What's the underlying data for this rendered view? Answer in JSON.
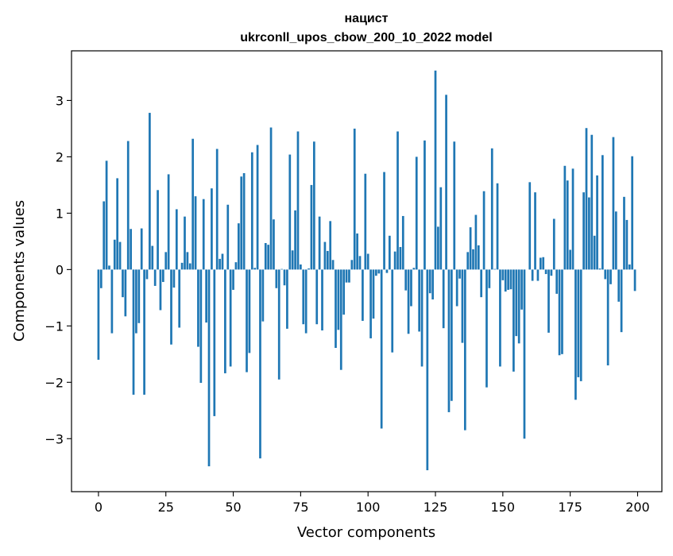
{
  "chart_data": {
    "type": "bar",
    "title_line1": "нацист",
    "title_line2": "ukrconll_upos_cbow_200_10_2022 model",
    "xlabel": "Vector components",
    "ylabel": "Components values",
    "xlim": [
      -10,
      209
    ],
    "ylim": [
      -3.94,
      3.88
    ],
    "xticks": [
      0,
      25,
      50,
      75,
      100,
      125,
      150,
      175,
      200
    ],
    "xtick_labels": [
      "0",
      "25",
      "50",
      "75",
      "100",
      "125",
      "150",
      "175",
      "200"
    ],
    "yticks": [
      -3,
      -2,
      -1,
      0,
      1,
      2,
      3
    ],
    "ytick_labels": [
      "−3",
      "−2",
      "−1",
      "0",
      "1",
      "2",
      "3"
    ],
    "grid": false,
    "bar_color": "#1f77b4",
    "x": [
      0,
      1,
      2,
      3,
      4,
      5,
      6,
      7,
      8,
      9,
      10,
      11,
      12,
      13,
      14,
      15,
      16,
      17,
      18,
      19,
      20,
      21,
      22,
      23,
      24,
      25,
      26,
      27,
      28,
      29,
      30,
      31,
      32,
      33,
      34,
      35,
      36,
      37,
      38,
      39,
      40,
      41,
      42,
      43,
      44,
      45,
      46,
      47,
      48,
      49,
      50,
      51,
      52,
      53,
      54,
      55,
      56,
      57,
      58,
      59,
      60,
      61,
      62,
      63,
      64,
      65,
      66,
      67,
      68,
      69,
      70,
      71,
      72,
      73,
      74,
      75,
      76,
      77,
      78,
      79,
      80,
      81,
      82,
      83,
      84,
      85,
      86,
      87,
      88,
      89,
      90,
      91,
      92,
      93,
      94,
      95,
      96,
      97,
      98,
      99,
      100,
      101,
      102,
      103,
      104,
      105,
      106,
      107,
      108,
      109,
      110,
      111,
      112,
      113,
      114,
      115,
      116,
      117,
      118,
      119,
      120,
      121,
      122,
      123,
      124,
      125,
      126,
      127,
      128,
      129,
      130,
      131,
      132,
      133,
      134,
      135,
      136,
      137,
      138,
      139,
      140,
      141,
      142,
      143,
      144,
      145,
      146,
      147,
      148,
      149,
      150,
      151,
      152,
      153,
      154,
      155,
      156,
      157,
      158,
      159,
      160,
      161,
      162,
      163,
      164,
      165,
      166,
      167,
      168,
      169,
      170,
      171,
      172,
      173,
      174,
      175,
      176,
      177,
      178,
      179,
      180,
      181,
      182,
      183,
      184,
      185,
      186,
      187,
      188,
      189,
      190,
      191,
      192,
      193,
      194,
      195,
      196,
      197,
      198,
      199
    ],
    "values": [
      -1.6,
      -0.33,
      1.21,
      1.93,
      0.07,
      -1.13,
      0.53,
      1.62,
      0.49,
      -0.49,
      -0.83,
      2.28,
      0.72,
      -2.22,
      -1.13,
      -0.95,
      0.73,
      -2.22,
      -0.17,
      2.78,
      0.42,
      -0.29,
      1.41,
      -0.72,
      -0.22,
      0.31,
      1.69,
      -1.33,
      -0.32,
      1.07,
      -1.03,
      0.12,
      0.94,
      0.31,
      0.11,
      2.32,
      1.3,
      -1.37,
      -2.01,
      1.25,
      -0.94,
      -3.49,
      1.44,
      -2.6,
      2.14,
      0.19,
      0.28,
      -1.84,
      1.15,
      -1.72,
      -0.36,
      0.13,
      0.82,
      1.65,
      1.71,
      -1.82,
      -1.48,
      2.08,
      0.03,
      2.21,
      -3.35,
      -0.92,
      0.47,
      0.44,
      2.52,
      0.89,
      -0.33,
      -1.95,
      0.01,
      -0.28,
      -1.05,
      2.04,
      0.34,
      1.05,
      2.45,
      0.09,
      -0.97,
      -1.13,
      0.02,
      1.5,
      2.27,
      -0.97,
      0.94,
      -1.08,
      0.49,
      0.33,
      0.86,
      0.17,
      -1.39,
      -1.07,
      -1.78,
      -0.8,
      -0.23,
      -0.23,
      0.17,
      2.5,
      0.64,
      0.24,
      -0.91,
      1.7,
      0.28,
      -1.22,
      -0.87,
      -0.11,
      -0.07,
      -2.82,
      1.73,
      -0.06,
      0.6,
      -1.47,
      0.32,
      2.45,
      0.4,
      0.95,
      -0.37,
      -1.14,
      -0.65,
      0.03,
      2.0,
      -1.1,
      -1.72,
      2.29,
      -3.56,
      -0.42,
      -0.53,
      3.53,
      0.76,
      1.46,
      -1.04,
      3.1,
      -2.53,
      -2.33,
      2.27,
      -0.65,
      -0.16,
      -1.3,
      -2.85,
      0.31,
      0.75,
      0.36,
      0.97,
      0.43,
      -0.49,
      1.39,
      -2.09,
      -0.33,
      2.15,
      0.01,
      1.53,
      -1.72,
      -0.19,
      -0.39,
      -0.36,
      -0.35,
      -1.81,
      -1.18,
      -1.31,
      -0.71,
      -3.0,
      0.0,
      1.55,
      -0.2,
      1.37,
      -0.2,
      0.21,
      0.22,
      -0.08,
      -1.12,
      -0.11,
      0.9,
      -0.43,
      -1.52,
      -1.5,
      1.84,
      1.58,
      0.35,
      1.79,
      -2.31,
      -1.91,
      -1.98,
      1.37,
      2.51,
      1.28,
      2.39,
      0.6,
      1.67,
      0.02,
      2.03,
      -0.17,
      -1.7,
      -0.26,
      2.35,
      1.03,
      -0.57,
      -1.11,
      1.29,
      0.88,
      0.09,
      2.01,
      -0.38
    ]
  }
}
